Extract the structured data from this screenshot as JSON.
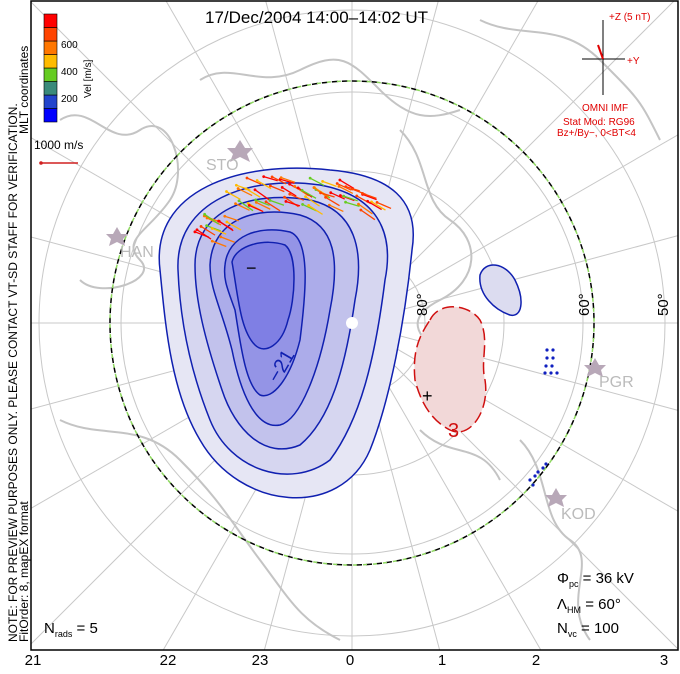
{
  "title": "17/Dec/2004 14:00–14:02 UT",
  "notice_line1": "NOTE: FOR PREVIEW PURPOSES ONLY. PLEASE CONTACT VT-SD STAFF FOR VERIFICATION.",
  "notice_line2": "FitOrder: 8, mapEX format",
  "coords_label": "MLT coordinates",
  "colorbar": {
    "label": "Vel [m/s]",
    "ticks": [
      "200",
      "400",
      "600"
    ],
    "colors": [
      "#0000ff",
      "#2244cc",
      "#3a8a7a",
      "#66cc22",
      "#ffbb00",
      "#ff7700",
      "#ff4400",
      "#ff0000"
    ]
  },
  "scale_vector": "1000 m/s",
  "imf": {
    "z_label": "+Z (5 nT)",
    "y_label": "+Y",
    "source": "OMNI IMF",
    "model": "Stat Mod: RG96",
    "condition": "Bz+/By−, 0<BT<4"
  },
  "stations": [
    "STO",
    "HAN",
    "PGR",
    "KOD"
  ],
  "latitude_labels": [
    "80°",
    "60°",
    "50°"
  ],
  "contour_labels": {
    "min_label": "−21",
    "max_label": "3",
    "min_marker": "−",
    "max_marker": "+"
  },
  "stats": {
    "phi_pc_sym": "Φ",
    "phi_pc_sub": "pc",
    "phi_pc_val": "= 36 kV",
    "lambda_sym": "Λ",
    "lambda_sub": "HM",
    "lambda_val": "= 60°",
    "nvc_sym": "N",
    "nvc_sub": "vc",
    "nvc_val": "= 100"
  },
  "nrads": {
    "sym": "N",
    "sub": "rads",
    "val": "= 5"
  },
  "mlt_ticks": [
    "21",
    "22",
    "23",
    "0",
    "1",
    "2",
    "3"
  ]
}
